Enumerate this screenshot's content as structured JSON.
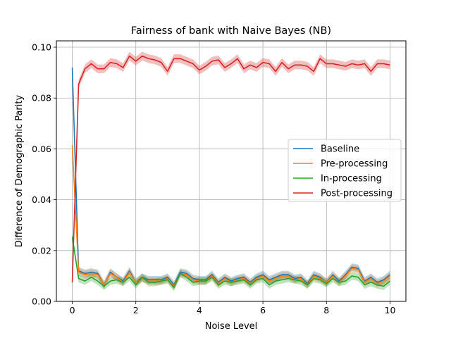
{
  "chart_data": {
    "type": "line",
    "title": "Fairness of bank with Naive Bayes (NB)",
    "xlabel": "Noise Level",
    "ylabel": "Difference of Demographic Parity",
    "xlim": [
      -0.5,
      10.5
    ],
    "ylim": [
      0.0,
      0.1025
    ],
    "xticks": [
      0,
      2,
      4,
      6,
      8,
      10
    ],
    "yticks": [
      0.0,
      0.02,
      0.04,
      0.06,
      0.08,
      0.1
    ],
    "xtick_labels": [
      "0",
      "2",
      "4",
      "6",
      "8",
      "10"
    ],
    "ytick_labels": [
      "0.00",
      "0.02",
      "0.04",
      "0.06",
      "0.08",
      "0.10"
    ],
    "grid": true,
    "legend_position": "center-right",
    "x": [
      0,
      0.2,
      0.4,
      0.6,
      0.8,
      1.0,
      1.2,
      1.4,
      1.6,
      1.8,
      2.0,
      2.2,
      2.4,
      2.6,
      2.8,
      3.0,
      3.2,
      3.4,
      3.6,
      3.8,
      4.0,
      4.2,
      4.4,
      4.6,
      4.8,
      5.0,
      5.2,
      5.4,
      5.6,
      5.8,
      6.0,
      6.2,
      6.4,
      6.6,
      6.8,
      7.0,
      7.2,
      7.4,
      7.6,
      7.8,
      8.0,
      8.2,
      8.4,
      8.6,
      8.8,
      9.0,
      9.2,
      9.4,
      9.6,
      9.8,
      10.0
    ],
    "series": [
      {
        "name": "Baseline",
        "color": "#1f77b4",
        "values": [
          0.092,
          0.012,
          0.011,
          0.0115,
          0.011,
          0.0065,
          0.0115,
          0.0095,
          0.008,
          0.012,
          0.0075,
          0.0095,
          0.0085,
          0.0085,
          0.0085,
          0.0095,
          0.0065,
          0.0115,
          0.011,
          0.009,
          0.0085,
          0.0085,
          0.0105,
          0.0075,
          0.0095,
          0.008,
          0.009,
          0.0095,
          0.0075,
          0.0095,
          0.0105,
          0.0085,
          0.0095,
          0.0105,
          0.0105,
          0.009,
          0.0095,
          0.007,
          0.0105,
          0.0095,
          0.0075,
          0.0105,
          0.008,
          0.0105,
          0.0135,
          0.013,
          0.008,
          0.0095,
          0.0075,
          0.0085,
          0.0105
        ],
        "band": 0.0015
      },
      {
        "name": "Pre-processing",
        "color": "#ff7f0e",
        "values": [
          0.0615,
          0.0115,
          0.0105,
          0.011,
          0.0105,
          0.0065,
          0.011,
          0.0095,
          0.0075,
          0.0115,
          0.0075,
          0.009,
          0.008,
          0.008,
          0.008,
          0.009,
          0.006,
          0.011,
          0.0105,
          0.0085,
          0.008,
          0.008,
          0.01,
          0.007,
          0.009,
          0.0075,
          0.0085,
          0.009,
          0.007,
          0.009,
          0.01,
          0.008,
          0.009,
          0.01,
          0.01,
          0.0085,
          0.009,
          0.0065,
          0.01,
          0.009,
          0.0075,
          0.01,
          0.0075,
          0.01,
          0.013,
          0.0125,
          0.0075,
          0.009,
          0.007,
          0.008,
          0.01
        ],
        "band": 0.0015
      },
      {
        "name": "In-processing",
        "color": "#2ca02c",
        "values": [
          0.0255,
          0.009,
          0.008,
          0.0095,
          0.008,
          0.006,
          0.008,
          0.0085,
          0.0075,
          0.0095,
          0.0065,
          0.0095,
          0.0075,
          0.0075,
          0.008,
          0.0085,
          0.0055,
          0.011,
          0.0095,
          0.0075,
          0.008,
          0.008,
          0.0095,
          0.0065,
          0.008,
          0.0075,
          0.008,
          0.0085,
          0.0065,
          0.0085,
          0.009,
          0.0065,
          0.008,
          0.0085,
          0.009,
          0.0085,
          0.008,
          0.0065,
          0.009,
          0.0085,
          0.007,
          0.009,
          0.0075,
          0.008,
          0.01,
          0.0095,
          0.0065,
          0.0075,
          0.0065,
          0.006,
          0.008
        ],
        "band": 0.0015
      },
      {
        "name": "Post-processing",
        "color": "#d62728",
        "values": [
          0.0075,
          0.0855,
          0.0915,
          0.0935,
          0.0915,
          0.0915,
          0.094,
          0.0935,
          0.092,
          0.0965,
          0.0945,
          0.0965,
          0.0955,
          0.095,
          0.094,
          0.0905,
          0.0955,
          0.0955,
          0.0945,
          0.0935,
          0.091,
          0.0925,
          0.0945,
          0.095,
          0.092,
          0.0935,
          0.0955,
          0.0915,
          0.093,
          0.092,
          0.094,
          0.0935,
          0.0905,
          0.094,
          0.0915,
          0.093,
          0.093,
          0.0925,
          0.0905,
          0.0955,
          0.0935,
          0.0935,
          0.093,
          0.0925,
          0.0935,
          0.093,
          0.0935,
          0.0905,
          0.0935,
          0.0935,
          0.093
        ],
        "band": 0.0017
      }
    ]
  }
}
